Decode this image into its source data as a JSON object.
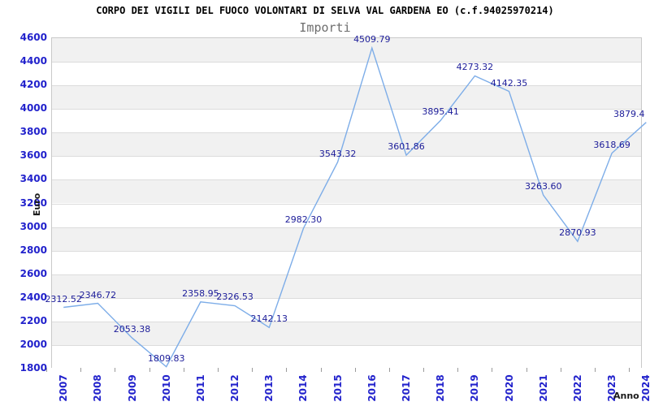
{
  "chart_data": {
    "type": "line",
    "title": "CORPO DEI VIGILI DEL FUOCO VOLONTARI DI SELVA VAL GARDENA EO (c.f.94025970214)",
    "subtitle": "Importi",
    "xlabel": "Anno",
    "ylabel": "Euro",
    "categories": [
      "2007",
      "2008",
      "2009",
      "2010",
      "2011",
      "2012",
      "2013",
      "2014",
      "2015",
      "2016",
      "2017",
      "2018",
      "2019",
      "2020",
      "2021",
      "2022",
      "2023",
      "2024"
    ],
    "values": [
      2312.52,
      2346.72,
      2053.38,
      1809.83,
      2358.95,
      2326.53,
      2142.13,
      2982.3,
      3543.32,
      4509.79,
      3601.86,
      3895.41,
      4273.32,
      4142.35,
      3263.6,
      2870.93,
      3618.69,
      3879.4
    ],
    "point_labels": [
      "2312.52",
      "2346.72",
      "2053.38",
      "1809.83",
      "2358.95",
      "2326.53",
      "2142.13",
      "2982.30",
      "3543.32",
      "4509.79",
      "3601.86",
      "3895.41",
      "4273.32",
      "4142.35",
      "3263.60",
      "2870.93",
      "3618.69",
      "3879.4"
    ],
    "ylim": [
      1800,
      4600
    ],
    "ytick_step": 200,
    "grid": "horizontal-bands",
    "legend_position": "none"
  },
  "colors": {
    "line": "#7dade8",
    "axis_tick_label": "#2222cc",
    "point_label": "#1c1c99",
    "band_gray": "#f1f1f1",
    "band_white": "#ffffff",
    "grid_line": "#dcdcdc",
    "plot_border": "#c9c9c9",
    "title": "#000000",
    "subtitle": "#6e6e6e",
    "axis_title": "#1a1a1a",
    "tick_mark": "#9a9a9a",
    "background": "#ffffff"
  }
}
